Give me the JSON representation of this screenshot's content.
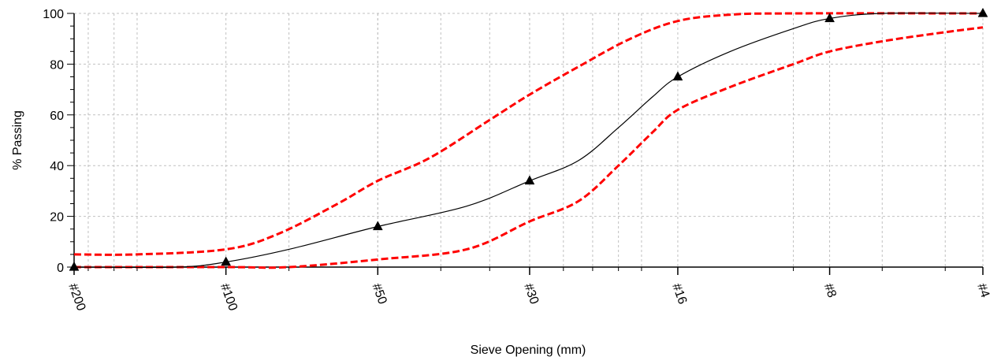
{
  "chart_data": {
    "type": "line",
    "title": "",
    "xlabel": "Sieve Opening (mm)",
    "ylabel": "% Passing",
    "x_scale": "log",
    "x_sieves": [
      {
        "label": "#200",
        "mm": 0.075
      },
      {
        "label": "#100",
        "mm": 0.15
      },
      {
        "label": "#50",
        "mm": 0.3
      },
      {
        "label": "#30",
        "mm": 0.6
      },
      {
        "label": "#16",
        "mm": 1.18
      },
      {
        "label": "#8",
        "mm": 2.36
      },
      {
        "label": "#4",
        "mm": 4.75
      }
    ],
    "xlim": [
      0.075,
      4.75
    ],
    "ylim": [
      0,
      100
    ],
    "yticks": [
      "0",
      "20",
      "40",
      "60",
      "80",
      "100"
    ],
    "grid": true,
    "colors": {
      "gradation": "#000000",
      "limits": "#ff0000",
      "grid": "#c0c0c0"
    },
    "series": [
      {
        "role": "gradation",
        "points": [
          [
            0.075,
            0
          ],
          [
            0.15,
            2
          ],
          [
            0.3,
            16
          ],
          [
            0.6,
            34
          ],
          [
            1.18,
            75
          ],
          [
            2.36,
            98
          ],
          [
            4.75,
            100
          ]
        ],
        "curve": [
          [
            0.075,
            0
          ],
          [
            0.12,
            0
          ],
          [
            0.15,
            2
          ],
          [
            0.2,
            7
          ],
          [
            0.3,
            16
          ],
          [
            0.45,
            24
          ],
          [
            0.6,
            34
          ],
          [
            0.75,
            42
          ],
          [
            0.9,
            55
          ],
          [
            1.05,
            67
          ],
          [
            1.18,
            75
          ],
          [
            1.5,
            85
          ],
          [
            2.0,
            94
          ],
          [
            2.36,
            98
          ],
          [
            3.0,
            100
          ],
          [
            4.75,
            100
          ]
        ]
      },
      {
        "role": "upper-limit",
        "curve": [
          [
            0.075,
            5
          ],
          [
            0.1,
            5
          ],
          [
            0.15,
            7
          ],
          [
            0.19,
            13
          ],
          [
            0.25,
            25
          ],
          [
            0.3,
            34
          ],
          [
            0.38,
            43
          ],
          [
            0.5,
            58
          ],
          [
            0.6,
            68
          ],
          [
            0.75,
            79
          ],
          [
            0.95,
            90
          ],
          [
            1.18,
            97
          ],
          [
            1.5,
            99.5
          ],
          [
            2.0,
            100
          ],
          [
            4.75,
            100
          ]
        ]
      },
      {
        "role": "lower-limit",
        "curve": [
          [
            0.075,
            0
          ],
          [
            0.15,
            0
          ],
          [
            0.2,
            0
          ],
          [
            0.3,
            3
          ],
          [
            0.45,
            7
          ],
          [
            0.6,
            18
          ],
          [
            0.75,
            26
          ],
          [
            0.9,
            40
          ],
          [
            1.05,
            53
          ],
          [
            1.18,
            62
          ],
          [
            1.5,
            71
          ],
          [
            2.0,
            80
          ],
          [
            2.36,
            85
          ],
          [
            3.0,
            89
          ],
          [
            3.8,
            92
          ],
          [
            4.75,
            94.5
          ]
        ]
      }
    ]
  }
}
